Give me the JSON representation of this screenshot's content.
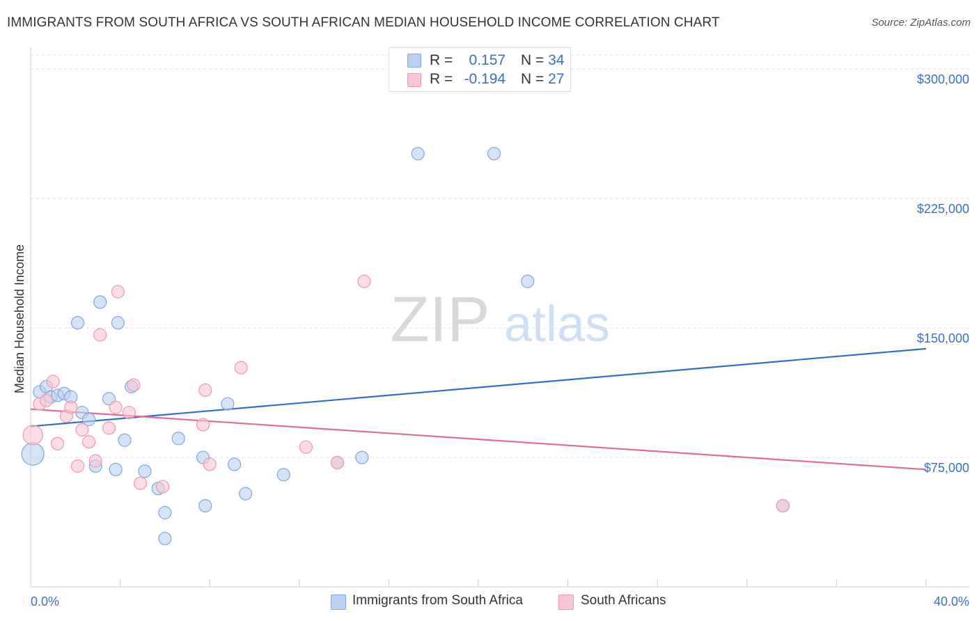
{
  "title": "IMMIGRANTS FROM SOUTH AFRICA VS SOUTH AFRICAN MEDIAN HOUSEHOLD INCOME CORRELATION CHART",
  "source": "Source: ZipAtlas.com",
  "watermark": {
    "zip": "ZIP",
    "atlas": "atlas"
  },
  "legend_top": [
    {
      "r_label": "R =",
      "r_value": "0.157",
      "n_label": "N =",
      "n_value": "34"
    },
    {
      "r_label": "R =",
      "r_value": "-0.194",
      "n_label": "N =",
      "n_value": "27"
    }
  ],
  "colors": {
    "blue_fill": "#b9d0f2",
    "blue_stroke": "#7fa6e0",
    "blue_line": "#2f6fcc",
    "pink_fill": "#f8c5d4",
    "pink_stroke": "#ee97b2",
    "pink_line": "#e46b95",
    "axis_label": "#3b6fc4",
    "grid": "#dddddd"
  },
  "chart_data": {
    "type": "scatter",
    "title": "IMMIGRANTS FROM SOUTH AFRICA VS SOUTH AFRICAN MEDIAN HOUSEHOLD INCOME CORRELATION CHART",
    "xlabel": "",
    "ylabel": "Median Household Income",
    "xlim": [
      0,
      40
    ],
    "ylim": [
      0,
      315000
    ],
    "x_tick_labels": [
      "0.0%",
      "40.0%"
    ],
    "y_ticks": [
      75000,
      150000,
      225000,
      300000
    ],
    "y_tick_labels": [
      "$75,000",
      "$150,000",
      "$225,000",
      "$300,000"
    ],
    "grid": "dashed horizontal",
    "legend_placement": "top-center and bottom",
    "series": [
      {
        "name": "Immigrants from South Africa",
        "color": "#b9d0f2",
        "points": [
          [
            0.1,
            77000,
            16
          ],
          [
            0.4,
            113000,
            9
          ],
          [
            0.7,
            116000,
            9
          ],
          [
            0.9,
            110000,
            9
          ],
          [
            1.2,
            111000,
            9
          ],
          [
            1.5,
            112000,
            9
          ],
          [
            1.8,
            110000,
            9
          ],
          [
            2.1,
            153000,
            9
          ],
          [
            2.3,
            101000,
            9
          ],
          [
            2.6,
            97000,
            9
          ],
          [
            2.9,
            70000,
            9
          ],
          [
            3.1,
            165000,
            9
          ],
          [
            3.5,
            109000,
            9
          ],
          [
            3.8,
            68000,
            9
          ],
          [
            3.9,
            153000,
            9
          ],
          [
            4.2,
            85000,
            9
          ],
          [
            4.5,
            116000,
            9
          ],
          [
            5.1,
            67000,
            9
          ],
          [
            5.7,
            57000,
            9
          ],
          [
            6.0,
            43000,
            9
          ],
          [
            6.0,
            28000,
            9
          ],
          [
            6.6,
            86000,
            9
          ],
          [
            7.7,
            75000,
            9
          ],
          [
            7.8,
            47000,
            9
          ],
          [
            8.8,
            106000,
            9
          ],
          [
            9.1,
            71000,
            9
          ],
          [
            9.6,
            54000,
            9
          ],
          [
            11.3,
            65000,
            9
          ],
          [
            13.7,
            72000,
            9
          ],
          [
            14.8,
            75000,
            9
          ],
          [
            17.3,
            251000,
            9
          ],
          [
            20.7,
            251000,
            9
          ],
          [
            22.2,
            177000,
            9
          ],
          [
            33.6,
            47000,
            9
          ]
        ]
      },
      {
        "name": "South Africans",
        "color": "#f8c5d4",
        "points": [
          [
            0.1,
            88000,
            14
          ],
          [
            0.4,
            106000,
            9
          ],
          [
            0.7,
            108000,
            9
          ],
          [
            1.0,
            119000,
            9
          ],
          [
            1.2,
            83000,
            9
          ],
          [
            1.6,
            99000,
            9
          ],
          [
            1.8,
            104000,
            9
          ],
          [
            2.1,
            70000,
            9
          ],
          [
            2.3,
            91000,
            9
          ],
          [
            2.6,
            84000,
            9
          ],
          [
            2.9,
            73000,
            9
          ],
          [
            3.1,
            146000,
            9
          ],
          [
            3.5,
            92000,
            9
          ],
          [
            3.8,
            104000,
            9
          ],
          [
            3.9,
            171000,
            9
          ],
          [
            4.4,
            101000,
            9
          ],
          [
            4.6,
            117000,
            9
          ],
          [
            4.9,
            60000,
            9
          ],
          [
            5.9,
            58000,
            9
          ],
          [
            7.7,
            94000,
            9
          ],
          [
            7.8,
            114000,
            9
          ],
          [
            8.0,
            71000,
            9
          ],
          [
            9.4,
            127000,
            9
          ],
          [
            12.3,
            81000,
            9
          ],
          [
            13.7,
            72000,
            9
          ],
          [
            14.9,
            177000,
            9
          ],
          [
            33.6,
            47000,
            9
          ]
        ]
      }
    ],
    "trendlines": [
      {
        "series": "Immigrants from South Africa",
        "x": [
          0,
          40
        ],
        "y": [
          93000,
          138000
        ]
      },
      {
        "series": "South Africans",
        "x": [
          0,
          40
        ],
        "y": [
          103000,
          68000
        ]
      }
    ]
  },
  "bottom_legend": [
    {
      "label": "Immigrants from South Africa"
    },
    {
      "label": "South Africans"
    }
  ]
}
